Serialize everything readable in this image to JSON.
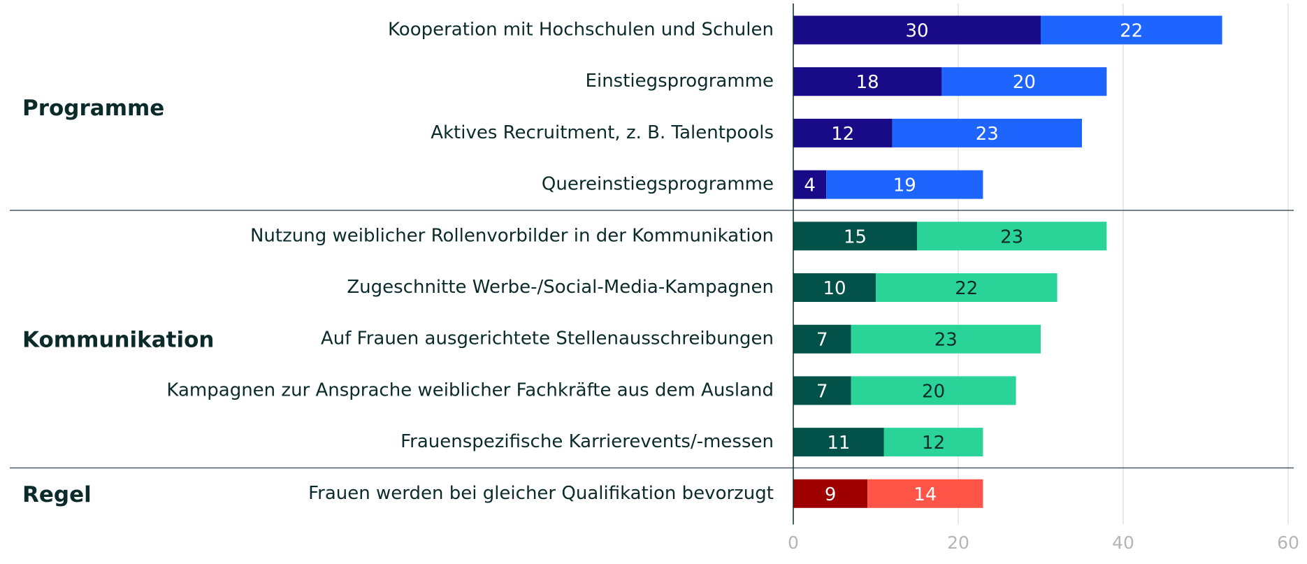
{
  "chart_data": {
    "type": "stacked_bar",
    "groups": [
      {
        "label": "Programme",
        "categories": [
          "Kooperation mit Hochschulen und Schulen",
          "Einstiegsprogramme",
          "Aktives Recruitment, z. B. Talentpools",
          "Quereinstiegsprogramme"
        ],
        "series": [
          {
            "color": "#190a87",
            "label_color": "#ffffff",
            "values": [
              30,
              18,
              12,
              4
            ]
          },
          {
            "color": "#1e64ff",
            "label_color": "#ffffff",
            "values": [
              22,
              20,
              23,
              19
            ]
          }
        ]
      },
      {
        "label": "Kommunikation",
        "categories": [
          "Nutzung weiblicher Rollenvorbilder in der Kommunikation",
          "Zugeschnitte Werbe-/Social-Media-Kampagnen",
          "Auf Frauen ausgerichtete Stellenausschreibungen",
          "Kampagnen zur Ansprache weiblicher Fachkräfte aus dem Ausland",
          "Frauenspezifische Karrierevents/-messen"
        ],
        "series": [
          {
            "color": "#02524a",
            "label_color": "#ffffff",
            "values": [
              15,
              10,
              7,
              7,
              11
            ]
          },
          {
            "color": "#2ad398",
            "label_color": "#0b2a2a",
            "values": [
              23,
              22,
              23,
              20,
              12
            ]
          }
        ]
      },
      {
        "label": "Regel",
        "categories": [
          "Frauen werden bei gleicher Qualifikation bevorzugt"
        ],
        "series": [
          {
            "color": "#9e0000",
            "label_color": "#ffffff",
            "values": [
              9
            ]
          },
          {
            "color": "#ff5447",
            "label_color": "#ffffff",
            "values": [
              14
            ]
          }
        ]
      }
    ],
    "xlim": [
      0,
      60
    ],
    "xticks": [
      0,
      20,
      40,
      60
    ],
    "grid": true
  }
}
